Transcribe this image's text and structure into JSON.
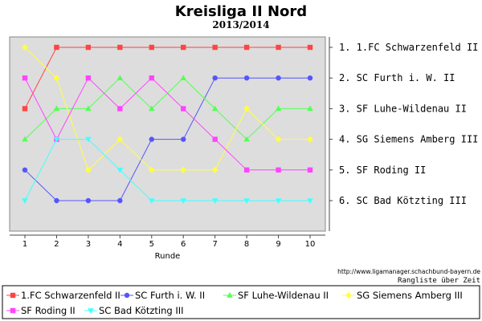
{
  "chart_data": {
    "type": "line",
    "title": "Kreisliga II Nord",
    "subtitle": "2013/2014",
    "xlabel": "Runde",
    "ylabel": "",
    "x": [
      1,
      2,
      3,
      4,
      5,
      6,
      7,
      8,
      9,
      10
    ],
    "ylim": [
      1,
      6
    ],
    "y_inverted": true,
    "rank_labels": [
      "1. 1.FC Schwarzenfeld II",
      "2. SC Furth i. W. II",
      "3. SF Luhe-Wildenau II",
      "4. SG Siemens Amberg III",
      "5. SF Roding II",
      "6. SC Bad Kötzting III"
    ],
    "series": [
      {
        "name": "1.FC Schwarzenfeld II",
        "color": "#ff4444",
        "marker": "square",
        "values": [
          3,
          1,
          1,
          1,
          1,
          1,
          1,
          1,
          1,
          1
        ]
      },
      {
        "name": "SC Furth i. W. II",
        "color": "#5555ff",
        "marker": "circle",
        "values": [
          5,
          6,
          6,
          6,
          4,
          4,
          2,
          2,
          2,
          2
        ]
      },
      {
        "name": "SF Luhe-Wildenau II",
        "color": "#55ff55",
        "marker": "triangle-up",
        "values": [
          4,
          3,
          3,
          2,
          3,
          2,
          3,
          4,
          3,
          3
        ]
      },
      {
        "name": "SG Siemens Amberg III",
        "color": "#ffff44",
        "marker": "diamond",
        "values": [
          1,
          2,
          5,
          4,
          5,
          5,
          5,
          3,
          4,
          4
        ]
      },
      {
        "name": "SF Roding II",
        "color": "#ff44ff",
        "marker": "square",
        "values": [
          2,
          4,
          2,
          3,
          2,
          3,
          4,
          5,
          5,
          5
        ]
      },
      {
        "name": "SC Bad Kötzting III",
        "color": "#44ffff",
        "marker": "triangle-down",
        "values": [
          6,
          4,
          4,
          5,
          6,
          6,
          6,
          6,
          6,
          6
        ]
      }
    ],
    "grid": false,
    "legend_position": "bottom",
    "source_url": "http://www.ligamanager.schachbund-bayern.de",
    "footer_label": "Rangliste über Zeit",
    "plot_background": "#dddddd"
  }
}
